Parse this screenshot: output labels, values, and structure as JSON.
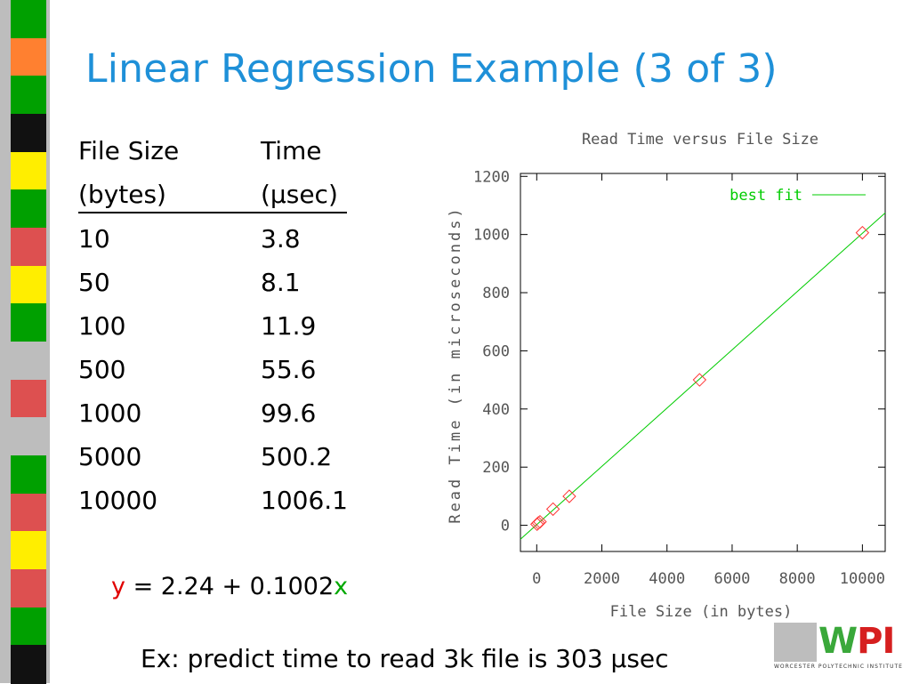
{
  "slide": {
    "title": "Linear Regression Example (3 of 3)"
  },
  "table": {
    "header1": [
      "File Size",
      "Time"
    ],
    "header2": [
      "(bytes)",
      "(µsec)"
    ],
    "rows": [
      [
        "10",
        "3.8"
      ],
      [
        "50",
        "8.1"
      ],
      [
        "100",
        "11.9"
      ],
      [
        "500",
        "55.6"
      ],
      [
        "1000",
        "99.6"
      ],
      [
        "5000",
        "500.2"
      ],
      [
        "10000",
        "1006.1"
      ]
    ]
  },
  "equation": {
    "y": "y",
    "middle": " = 2.24 + 0.1002",
    "x": "x"
  },
  "example": "Ex: predict time to read 3k file is 303 µsec",
  "logo": {
    "w": "W",
    "pi": "PI",
    "subtitle": "WORCESTER POLYTECHNIC INSTITUTE"
  },
  "colors": {
    "title": "#1e90d8",
    "fit_line": "#00cc00",
    "data_points": "#ff3333",
    "axis_text": "#555555"
  },
  "stripe_colors": [
    "#00a000",
    "#ff8030",
    "#00a000",
    "#111111",
    "#ffee00",
    "#00a000",
    "#dd5050",
    "#ffee00",
    "#00a000",
    "#bdbdbd",
    "#dd5050",
    "#bdbdbd",
    "#00a000",
    "#dd5050",
    "#ffee00",
    "#dd5050",
    "#00a000",
    "#111111"
  ],
  "chart_data": {
    "type": "scatter",
    "title": "Read Time versus File Size",
    "xlabel": "File Size (in bytes)",
    "ylabel": "Read Time (in microseconds)",
    "xlim": [
      -500,
      10700
    ],
    "ylim": [
      -90,
      1210
    ],
    "xticks": [
      0,
      2000,
      4000,
      6000,
      8000,
      10000
    ],
    "yticks": [
      0,
      200,
      400,
      600,
      800,
      1000,
      1200
    ],
    "grid": false,
    "legend": {
      "position": "top-right",
      "label": "best fit"
    },
    "series": [
      {
        "x": [
          10,
          50,
          100,
          500,
          1000,
          5000,
          10000
        ],
        "y": [
          3.8,
          8.1,
          11.9,
          55.6,
          99.6,
          500.2,
          1006.1
        ]
      }
    ],
    "fit": {
      "intercept": 2.24,
      "slope": 0.1002
    }
  }
}
